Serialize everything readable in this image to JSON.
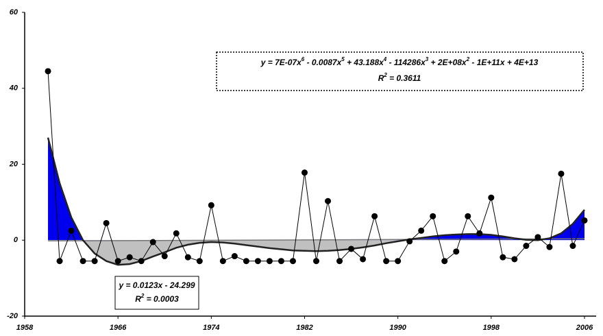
{
  "chart_data": {
    "type": "line",
    "x": [
      1960,
      1961,
      1962,
      1963,
      1964,
      1965,
      1966,
      1967,
      1968,
      1969,
      1970,
      1971,
      1972,
      1973,
      1974,
      1975,
      1976,
      1977,
      1978,
      1979,
      1980,
      1981,
      1982,
      1983,
      1984,
      1985,
      1986,
      1987,
      1988,
      1989,
      1990,
      1991,
      1992,
      1993,
      1994,
      1995,
      1996,
      1997,
      1998,
      1999,
      2000,
      2001,
      2002,
      2003,
      2004,
      2005,
      2006
    ],
    "series": [
      {
        "color": "#000000",
        "values": [
          44.5,
          -5.5,
          2.5,
          -5.5,
          -5.5,
          4.5,
          -5.5,
          -4.5,
          -5.5,
          -0.5,
          -4.2,
          1.8,
          -4.5,
          -5.5,
          9.2,
          -5.5,
          -4.2,
          -5.5,
          -5.5,
          -5.5,
          -5.5,
          -5.5,
          17.8,
          -5.5,
          10.3,
          -5.5,
          -2.3,
          -5.0,
          6.3,
          -5.5,
          -5.5,
          -0.3,
          2.5,
          6.3,
          -5.5,
          -3.0,
          6.3,
          1.8,
          11.2,
          -4.5,
          -5.0,
          -1.5,
          0.8,
          -1.8,
          17.5,
          -1.5,
          5.2
        ]
      },
      {
        "color": "#222222",
        "positive_fill": "#0000ee",
        "negative_fill": "#c0c0c0",
        "values": [
          27,
          15,
          6,
          0,
          -3.5,
          -5.5,
          -6.5,
          -6.3,
          -5.5,
          -4.3,
          -3.2,
          -2,
          -1.2,
          -0.7,
          -0.5,
          -0.6,
          -0.9,
          -1.3,
          -1.7,
          -2.1,
          -2.4,
          -2.7,
          -2.8,
          -2.9,
          -2.8,
          -2.6,
          -2.3,
          -1.9,
          -1.4,
          -0.8,
          -0.3,
          0.2,
          0.6,
          1.0,
          1.3,
          1.5,
          1.6,
          1.6,
          1.4,
          1.0,
          0.5,
          0.1,
          0.0,
          0.5,
          1.8,
          4.3,
          8.0
        ]
      }
    ],
    "trend": {
      "x": [
        1960,
        2006
      ],
      "values": [
        -0.19,
        0.37
      ],
      "color": "#777777"
    },
    "xlim": [
      1958,
      2007
    ],
    "xticks": [
      1958,
      1966,
      1974,
      1982,
      1990,
      1998,
      2006
    ],
    "ylim": [
      -20,
      60
    ],
    "yticks": [
      -20,
      0,
      20,
      40,
      60
    ],
    "annotations": [
      {
        "lines": [
          [
            "y = 7E-07x",
            "6",
            " - 0.0087x",
            "5",
            " + 43.188x",
            "4",
            " - 114286x",
            "3",
            " + 2E+08x",
            "2",
            " - 1E+11x + 4E+13"
          ],
          [
            "R",
            "2",
            " = 0.3611"
          ]
        ]
      },
      {
        "lines": [
          [
            "y = 0.0123x - 24.299"
          ],
          [
            "R",
            "2",
            " = 0.0003"
          ]
        ]
      }
    ]
  }
}
